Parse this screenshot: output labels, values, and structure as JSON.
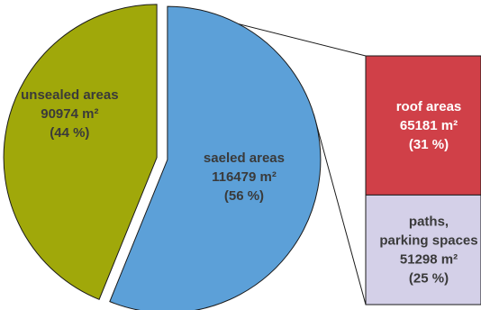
{
  "chart_data": {
    "type": "pie",
    "title": "",
    "slices": [
      {
        "name": "unsealed areas",
        "value": 90974,
        "value_label": "90974 m²",
        "percent": 44,
        "percent_label": "(44 %)",
        "color": "#a0a80a",
        "text_color": "#3a3a3a"
      },
      {
        "name": "saeled areas",
        "value": 116479,
        "value_label": "116479 m²",
        "percent": 56,
        "percent_label": "(56 %)",
        "color": "#5ca0d8",
        "text_color": "#3a3a3a",
        "exploded": true
      }
    ],
    "breakdown": {
      "of": "saeled areas",
      "type": "stacked-bar",
      "segments": [
        {
          "name_lines": [
            "roof areas"
          ],
          "value": 65181,
          "value_label": "65181 m²",
          "percent": 31,
          "percent_label": "(31 %)",
          "color": "#d04048",
          "text_color": "#ffffff"
        },
        {
          "name_lines": [
            "paths,",
            "parking spaces"
          ],
          "value": 51298,
          "value_label": "51298 m²",
          "percent": 25,
          "percent_label": "(25 %)",
          "color": "#d4d0e8",
          "text_color": "#3a3a3a"
        }
      ]
    },
    "edge_color": "#1a1a1a"
  }
}
